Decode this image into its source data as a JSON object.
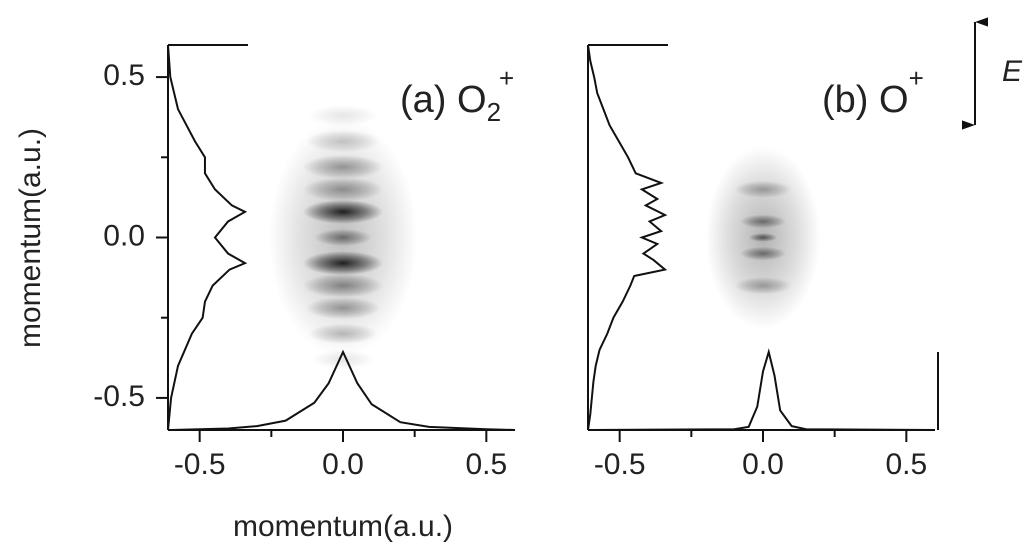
{
  "chart_data": [
    {
      "type": "heatmap",
      "label": "(a) O",
      "label_sub": "2",
      "label_sup": "+",
      "xlim": [
        -0.6,
        0.6
      ],
      "ylim": [
        -0.6,
        0.6
      ],
      "xticks": [
        -0.5,
        {
          "value": 0,
          "label": "0.0"
        },
        0.5
      ],
      "xminor": [
        -0.25,
        0.25
      ],
      "yticks": [
        -0.5,
        {
          "value": 0,
          "label": "0.0"
        },
        0.5
      ],
      "yminor": [
        -0.25,
        0.25
      ],
      "image": {
        "y": [
          0.0,
          0.38,
          0.3,
          0.22,
          0.15,
          0.08,
          0.0,
          -0.08,
          -0.15,
          -0.22,
          -0.3,
          -0.38
        ],
        "intensity": [
          0.25,
          0.1,
          0.2,
          0.35,
          0.35,
          0.85,
          0.45,
          0.85,
          0.4,
          0.35,
          0.25,
          0.1
        ],
        "width": [
          0.26,
          0.12,
          0.13,
          0.14,
          0.14,
          0.14,
          0.1,
          0.14,
          0.14,
          0.13,
          0.12,
          0.11
        ]
      },
      "y_profile": {
        "y": [
          0.6,
          0.5,
          0.4,
          0.3,
          0.25,
          0.2,
          0.15,
          0.1,
          0.08,
          0.05,
          0.0,
          -0.05,
          -0.08,
          -0.1,
          -0.15,
          -0.2,
          -0.25,
          -0.3,
          -0.4,
          -0.5,
          -0.6
        ],
        "values": [
          0,
          0.03,
          0.13,
          0.35,
          0.48,
          0.48,
          0.61,
          0.83,
          1.0,
          0.78,
          0.61,
          0.78,
          1.0,
          0.8,
          0.58,
          0.48,
          0.45,
          0.31,
          0.13,
          0.04,
          0
        ]
      },
      "x_profile": {
        "x": [
          -0.6,
          -0.4,
          -0.3,
          -0.2,
          -0.1,
          -0.05,
          0.0,
          0.05,
          0.1,
          0.2,
          0.3,
          0.5,
          0.6
        ],
        "values": [
          0,
          0.02,
          0.05,
          0.12,
          0.35,
          0.6,
          1.0,
          0.6,
          0.33,
          0.1,
          0.04,
          0.01,
          0
        ]
      }
    },
    {
      "type": "heatmap",
      "label": "(b) O",
      "label_sup": "+",
      "xlim": [
        -0.6,
        0.6
      ],
      "ylim": [
        -0.6,
        0.6
      ],
      "xticks": [
        -0.5,
        {
          "value": 0,
          "label": "0.0"
        },
        0.5
      ],
      "xminor": [
        -0.25,
        0.25
      ],
      "image": {
        "y": [
          0.0,
          0.15,
          0.05,
          -0.05,
          -0.15,
          0.0
        ],
        "intensity": [
          0.3,
          0.3,
          0.45,
          0.45,
          0.3,
          0.55
        ],
        "width": [
          0.2,
          0.1,
          0.08,
          0.08,
          0.1,
          0.05
        ]
      },
      "y_profile": {
        "y": [
          0.6,
          0.55,
          0.5,
          0.45,
          0.4,
          0.35,
          0.3,
          0.25,
          0.2,
          0.17,
          0.15,
          0.12,
          0.1,
          0.07,
          0.05,
          0.02,
          0.0,
          -0.02,
          -0.05,
          -0.07,
          -0.1,
          -0.12,
          -0.15,
          -0.2,
          -0.25,
          -0.3,
          -0.35,
          -0.4,
          -0.45,
          -0.5,
          -0.55,
          -0.6
        ],
        "values": [
          0,
          0.03,
          0.08,
          0.12,
          0.2,
          0.28,
          0.4,
          0.52,
          0.62,
          0.95,
          0.7,
          0.9,
          0.75,
          1.0,
          0.8,
          0.95,
          0.7,
          0.9,
          0.72,
          0.85,
          1.0,
          0.6,
          0.55,
          0.45,
          0.33,
          0.25,
          0.15,
          0.1,
          0.07,
          0.05,
          0.03,
          0
        ]
      },
      "x_profile": {
        "x": [
          -0.6,
          -0.1,
          -0.05,
          -0.02,
          0.0,
          0.02,
          0.04,
          0.06,
          0.1,
          0.15,
          0.6
        ],
        "values": [
          0,
          0.01,
          0.04,
          0.3,
          0.75,
          1.0,
          0.7,
          0.25,
          0.05,
          0.01,
          0
        ]
      }
    }
  ],
  "x_label": "momentum(a.u.)",
  "y_label": "momentum(a.u.)",
  "field_label": "E"
}
